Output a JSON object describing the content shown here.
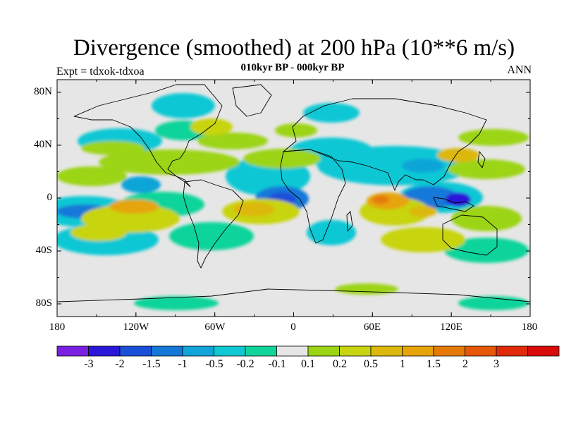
{
  "title": "Divergence (smoothed) at 200 hPa (10**6 m/s)",
  "subtitle": "010kyr BP - 000kyr BP",
  "left_label": "Expt = tdxok-tdxoa",
  "right_label": "ANN",
  "map": {
    "lat_ticks": [
      "80N",
      "40N",
      "0",
      "40S",
      "80S"
    ],
    "lon_ticks": [
      "180",
      "120W",
      "60W",
      "0",
      "60E",
      "120E",
      "180"
    ],
    "background_color": "#e6e6e6"
  },
  "colorbar": {
    "colors": [
      "#7a20e0",
      "#2a18d8",
      "#1a4fd8",
      "#1478d8",
      "#10a4d8",
      "#10c8d4",
      "#10d49a",
      "#e6e6e6",
      "#9cd414",
      "#c8d410",
      "#dcb80c",
      "#e6a408",
      "#e67a08",
      "#e65808",
      "#e02a0a",
      "#d80a0a"
    ],
    "labels": [
      "-3",
      "-2",
      "-1.5",
      "-1",
      "-0.5",
      "-0.2",
      "-0.1",
      "0.1",
      "0.2",
      "0.5",
      "1",
      "1.5",
      "2",
      "3"
    ]
  }
}
